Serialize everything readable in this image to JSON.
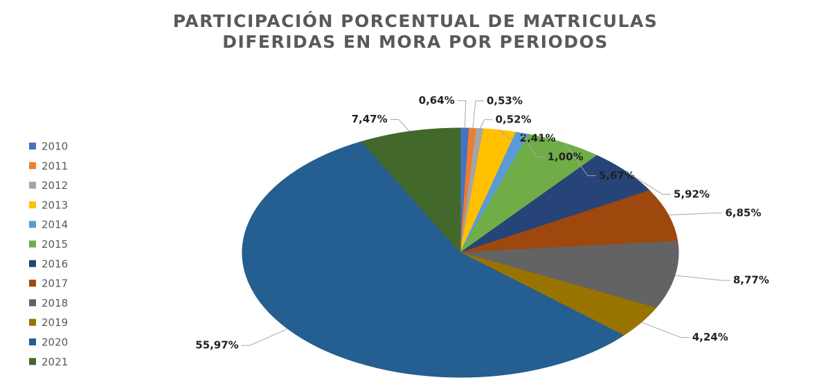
{
  "chart_data": {
    "type": "pie",
    "title": [
      "PARTICIPACIÓN PORCENTUAL DE MATRICULAS",
      "DIFERIDAS EN MORA POR PERIODOS"
    ],
    "categories": [
      "2010",
      "2011",
      "2012",
      "2013",
      "2014",
      "2015",
      "2016",
      "2017",
      "2018",
      "2019",
      "2020",
      "2021"
    ],
    "values": [
      0.64,
      0.53,
      0.52,
      2.41,
      1.0,
      5.67,
      5.92,
      6.85,
      8.77,
      4.24,
      55.97,
      7.47
    ],
    "value_labels": [
      "0,64%",
      "0,53%",
      "0,52%",
      "2,41%",
      "1,00%",
      "5,67%",
      "5,92%",
      "6,85%",
      "8,77%",
      "4,24%",
      "55,97%",
      "7,47%"
    ],
    "colors": [
      "#4472c4",
      "#ed7d31",
      "#a5a5a5",
      "#ffc000",
      "#5b9bd5",
      "#70ad47",
      "#264478",
      "#9e480e",
      "#636363",
      "#997300",
      "#255e91",
      "#43682b"
    ],
    "legend": "left"
  }
}
